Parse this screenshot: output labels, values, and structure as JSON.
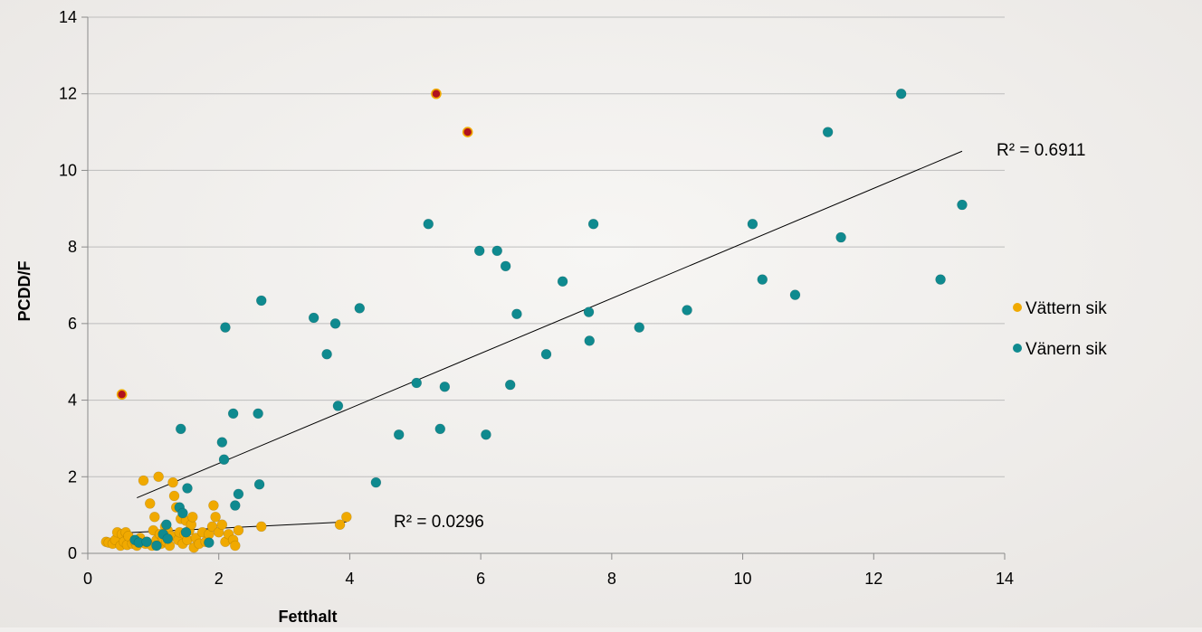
{
  "chart_data": {
    "type": "scatter",
    "xlabel": "Fetthalt",
    "ylabel": "PCDD/F",
    "xlim": [
      0,
      14
    ],
    "ylim": [
      0,
      14
    ],
    "xticks": [
      0,
      2,
      4,
      6,
      8,
      10,
      12,
      14
    ],
    "yticks": [
      0,
      2,
      4,
      6,
      8,
      10,
      12,
      14
    ],
    "grid": "horizontal",
    "legend": "right",
    "series": [
      {
        "name": "Vättern sik",
        "color": "#f0a900",
        "points": [
          [
            0.28,
            0.3
          ],
          [
            0.32,
            0.28
          ],
          [
            0.38,
            0.25
          ],
          [
            0.42,
            0.35
          ],
          [
            0.45,
            0.55
          ],
          [
            0.5,
            0.2
          ],
          [
            0.52,
            0.5
          ],
          [
            0.55,
            0.3
          ],
          [
            0.58,
            0.55
          ],
          [
            0.6,
            0.22
          ],
          [
            0.62,
            0.45
          ],
          [
            0.68,
            0.25
          ],
          [
            0.72,
            0.3
          ],
          [
            0.75,
            0.2
          ],
          [
            0.8,
            0.4
          ],
          [
            0.85,
            1.9
          ],
          [
            0.88,
            0.25
          ],
          [
            0.9,
            0.3
          ],
          [
            0.95,
            1.3
          ],
          [
            0.98,
            0.2
          ],
          [
            1.0,
            0.6
          ],
          [
            1.02,
            0.95
          ],
          [
            1.05,
            0.35
          ],
          [
            1.08,
            2.0
          ],
          [
            1.1,
            0.5
          ],
          [
            1.12,
            0.25
          ],
          [
            1.15,
            0.4
          ],
          [
            1.18,
            0.7
          ],
          [
            1.2,
            0.3
          ],
          [
            1.22,
            0.6
          ],
          [
            1.25,
            0.2
          ],
          [
            1.28,
            0.45
          ],
          [
            1.3,
            1.85
          ],
          [
            1.32,
            1.5
          ],
          [
            1.35,
            1.2
          ],
          [
            1.38,
            0.35
          ],
          [
            1.4,
            0.55
          ],
          [
            1.42,
            0.9
          ],
          [
            1.45,
            0.25
          ],
          [
            1.48,
            0.5
          ],
          [
            1.5,
            0.85
          ],
          [
            1.52,
            0.35
          ],
          [
            1.55,
            0.6
          ],
          [
            1.58,
            0.75
          ],
          [
            1.6,
            0.95
          ],
          [
            1.62,
            0.15
          ],
          [
            1.65,
            0.4
          ],
          [
            1.7,
            0.25
          ],
          [
            1.75,
            0.55
          ],
          [
            1.8,
            0.3
          ],
          [
            1.85,
            0.5
          ],
          [
            1.9,
            0.7
          ],
          [
            1.92,
            1.25
          ],
          [
            1.95,
            0.95
          ],
          [
            2.0,
            0.55
          ],
          [
            2.05,
            0.75
          ],
          [
            2.1,
            0.3
          ],
          [
            2.15,
            0.5
          ],
          [
            2.22,
            0.35
          ],
          [
            2.25,
            0.2
          ],
          [
            2.3,
            0.6
          ],
          [
            2.65,
            0.7
          ],
          [
            3.85,
            0.75
          ],
          [
            3.95,
            0.95
          ]
        ],
        "trendline": {
          "from": [
            0.4,
            0.52
          ],
          "to": [
            3.95,
            0.82
          ],
          "r2_label": "R² = 0.0296"
        }
      },
      {
        "name": "Vänern sik",
        "color": "#0f8a8f",
        "points": [
          [
            0.72,
            0.35
          ],
          [
            0.78,
            0.28
          ],
          [
            0.9,
            0.3
          ],
          [
            1.05,
            0.2
          ],
          [
            1.15,
            0.5
          ],
          [
            1.2,
            0.75
          ],
          [
            1.22,
            0.38
          ],
          [
            1.4,
            1.2
          ],
          [
            1.42,
            3.25
          ],
          [
            1.45,
            1.05
          ],
          [
            1.5,
            0.55
          ],
          [
            1.52,
            1.7
          ],
          [
            1.85,
            0.28
          ],
          [
            2.05,
            2.9
          ],
          [
            2.08,
            2.45
          ],
          [
            2.1,
            5.9
          ],
          [
            2.22,
            3.65
          ],
          [
            2.25,
            1.25
          ],
          [
            2.3,
            1.55
          ],
          [
            2.6,
            3.65
          ],
          [
            2.62,
            1.8
          ],
          [
            2.65,
            6.6
          ],
          [
            3.45,
            6.15
          ],
          [
            3.65,
            5.2
          ],
          [
            3.78,
            6.0
          ],
          [
            3.82,
            3.85
          ],
          [
            4.15,
            6.4
          ],
          [
            4.4,
            1.85
          ],
          [
            4.75,
            3.1
          ],
          [
            5.02,
            4.45
          ],
          [
            5.2,
            8.6
          ],
          [
            5.38,
            3.25
          ],
          [
            5.45,
            4.35
          ],
          [
            5.98,
            7.9
          ],
          [
            6.08,
            3.1
          ],
          [
            6.25,
            7.9
          ],
          [
            6.38,
            7.5
          ],
          [
            6.45,
            4.4
          ],
          [
            6.55,
            6.25
          ],
          [
            7.0,
            5.2
          ],
          [
            7.25,
            7.1
          ],
          [
            7.65,
            6.3
          ],
          [
            7.66,
            5.55
          ],
          [
            7.72,
            8.6
          ],
          [
            8.42,
            5.9
          ],
          [
            9.15,
            6.35
          ],
          [
            10.15,
            8.6
          ],
          [
            10.3,
            7.15
          ],
          [
            10.8,
            6.75
          ],
          [
            11.3,
            11.0
          ],
          [
            11.5,
            8.25
          ],
          [
            12.42,
            12.0
          ],
          [
            13.02,
            7.15
          ],
          [
            13.35,
            9.1
          ]
        ],
        "trendline": {
          "from": [
            0.75,
            1.45
          ],
          "to": [
            13.35,
            10.5
          ],
          "r2_label": "R² = 0.6911"
        }
      }
    ],
    "outliers": {
      "color": "#b0121e",
      "points": [
        [
          0.52,
          4.15
        ],
        [
          5.32,
          12.0
        ],
        [
          5.8,
          11.0
        ]
      ]
    }
  }
}
